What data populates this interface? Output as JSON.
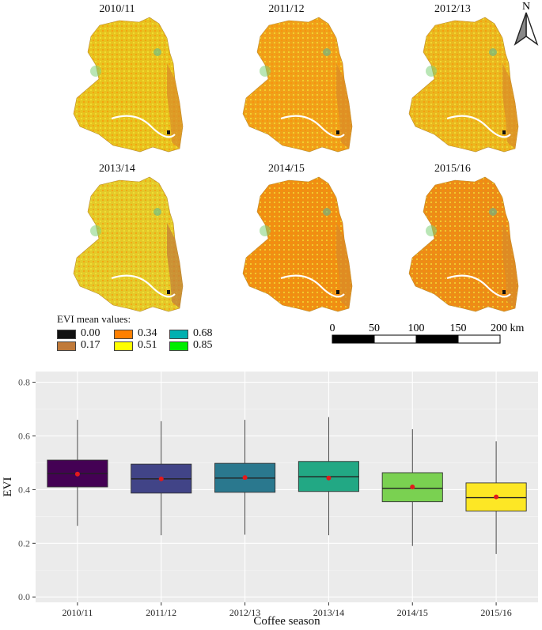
{
  "maps": {
    "panels": [
      {
        "label": "2010/11",
        "fill": "#e8c21f"
      },
      {
        "label": "2011/12",
        "fill": "#f0a01a"
      },
      {
        "label": "2012/13",
        "fill": "#eab720"
      },
      {
        "label": "2013/14",
        "fill": "#e4c92a"
      },
      {
        "label": "2014/15",
        "fill": "#ef8f14"
      },
      {
        "label": "2015/16",
        "fill": "#ec8c18"
      }
    ],
    "north_label": "N",
    "legend": {
      "title": "EVI mean values:",
      "items": [
        {
          "label": "0.00",
          "color": "#111111"
        },
        {
          "label": "0.17",
          "color": "#c07a3a"
        },
        {
          "label": "0.34",
          "color": "#ff8000"
        },
        {
          "label": "0.51",
          "color": "#ffff00"
        },
        {
          "label": "0.68",
          "color": "#00b0b0"
        },
        {
          "label": "0.85",
          "color": "#00ee00"
        }
      ]
    },
    "scale": {
      "ticks": [
        "0",
        "50",
        "100",
        "150",
        "200 km"
      ]
    }
  },
  "chart_data": {
    "type": "box",
    "title": "",
    "xlabel": "Coffee season",
    "ylabel": "EVI",
    "ylim": [
      -0.02,
      0.84
    ],
    "yticks": [
      "0.0",
      "0.2",
      "0.4",
      "0.6",
      "0.8"
    ],
    "ytick_values": [
      0.0,
      0.2,
      0.4,
      0.6,
      0.8
    ],
    "grid": true,
    "categories": [
      "2010/11",
      "2011/12",
      "2012/13",
      "2013/14",
      "2014/15",
      "2015/16"
    ],
    "boxes": [
      {
        "min": 0.265,
        "q1": 0.41,
        "median": 0.46,
        "q3": 0.51,
        "max": 0.66,
        "mean": 0.458,
        "color": "#440154"
      },
      {
        "min": 0.23,
        "q1": 0.387,
        "median": 0.44,
        "q3": 0.495,
        "max": 0.655,
        "mean": 0.44,
        "color": "#414487"
      },
      {
        "min": 0.232,
        "q1": 0.39,
        "median": 0.443,
        "q3": 0.498,
        "max": 0.66,
        "mean": 0.445,
        "color": "#2a788e"
      },
      {
        "min": 0.23,
        "q1": 0.393,
        "median": 0.448,
        "q3": 0.505,
        "max": 0.67,
        "mean": 0.443,
        "color": "#22a884"
      },
      {
        "min": 0.19,
        "q1": 0.355,
        "median": 0.405,
        "q3": 0.463,
        "max": 0.625,
        "mean": 0.41,
        "color": "#7ad151"
      },
      {
        "min": 0.16,
        "q1": 0.32,
        "median": 0.37,
        "q3": 0.425,
        "max": 0.58,
        "mean": 0.373,
        "color": "#fde725"
      }
    ],
    "mean_color": "#e31a1c",
    "panel_bg": "#ebebeb"
  }
}
